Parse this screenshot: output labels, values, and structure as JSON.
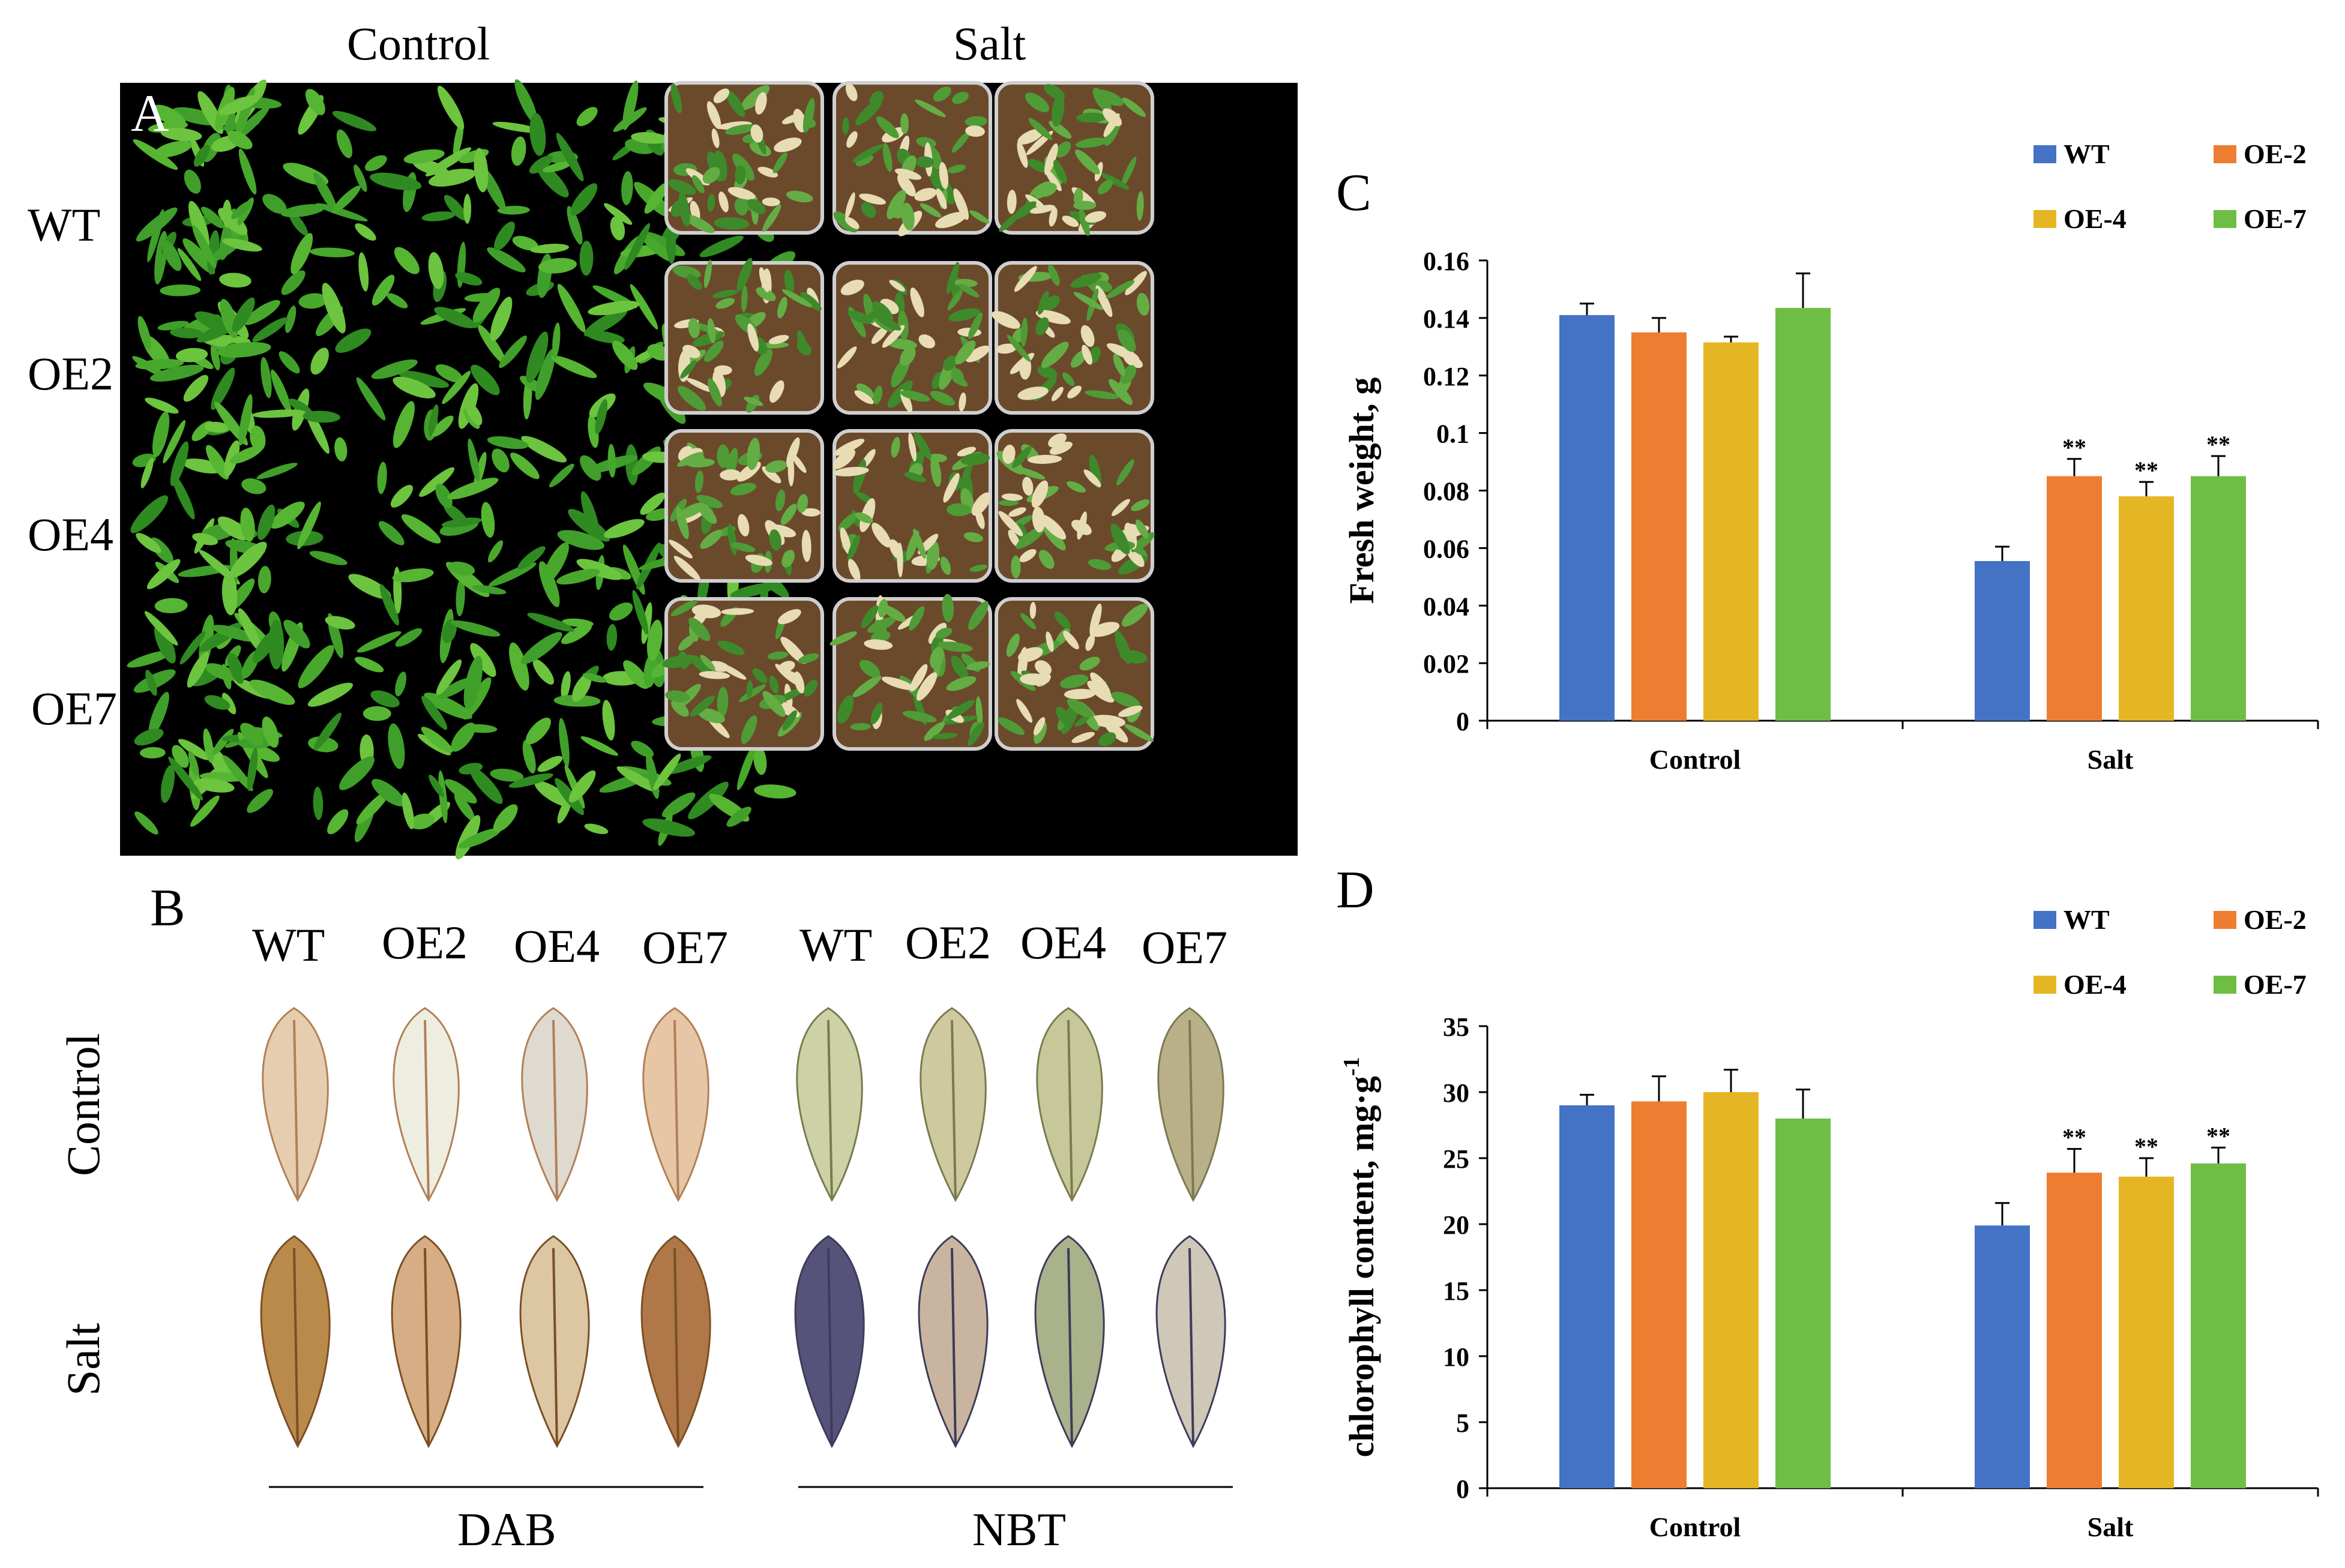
{
  "panel_a": {
    "letter": "A",
    "col_labels": [
      "Control",
      "Salt"
    ],
    "row_labels": [
      "WT",
      "OE2",
      "OE4",
      "OE7"
    ]
  },
  "panel_b": {
    "letter": "B",
    "col_labels": [
      "WT",
      "OE2",
      "OE4",
      "OE7",
      "WT",
      "OE2",
      "OE4",
      "OE7"
    ],
    "row_labels": [
      "Control",
      "Salt"
    ],
    "group_labels": [
      "DAB",
      "NBT"
    ]
  },
  "colors": {
    "WT": "#4472C4",
    "OE-2": "#ED7D31",
    "OE-4": "#E5B623",
    "OE-7": "#6EBE45",
    "photo_bg": "#000000",
    "leaf_green": "#3c9a2c"
  },
  "chart_data": [
    {
      "panel": "C",
      "type": "bar",
      "title": "",
      "xlabel": "",
      "ylabel": "Fresh weight, g",
      "ylim": [
        0,
        0.16
      ],
      "yticks": [
        0,
        0.02,
        0.04,
        0.06,
        0.08,
        0.1,
        0.12,
        0.14,
        0.16
      ],
      "ytick_labels": [
        "0",
        "0.02",
        "0.04",
        "0.06",
        "0.08",
        "0.1",
        "0.12",
        "0.14",
        "0.16"
      ],
      "categories": [
        "Control",
        "Salt"
      ],
      "series": [
        {
          "name": "WT",
          "values": [
            0.141,
            0.0555
          ],
          "errors": [
            0.004,
            0.005
          ],
          "sig": [
            "",
            ""
          ]
        },
        {
          "name": "OE-2",
          "values": [
            0.135,
            0.085
          ],
          "errors": [
            0.005,
            0.006
          ],
          "sig": [
            "",
            "**"
          ]
        },
        {
          "name": "OE-4",
          "values": [
            0.1315,
            0.078
          ],
          "errors": [
            0.002,
            0.005
          ],
          "sig": [
            "",
            "**"
          ]
        },
        {
          "name": "OE-7",
          "values": [
            0.1435,
            0.085
          ],
          "errors": [
            0.012,
            0.007
          ],
          "sig": [
            "",
            "**"
          ]
        }
      ]
    },
    {
      "panel": "D",
      "type": "bar",
      "title": "",
      "xlabel": "",
      "ylabel": "chlorophyll content, mg·g",
      "ylabel_sup": "-1",
      "ylim": [
        0,
        35
      ],
      "yticks": [
        0,
        5,
        10,
        15,
        20,
        25,
        30,
        35
      ],
      "ytick_labels": [
        "0",
        "5",
        "10",
        "15",
        "20",
        "25",
        "30",
        "35"
      ],
      "categories": [
        "Control",
        "Salt"
      ],
      "series": [
        {
          "name": "WT",
          "values": [
            29.0,
            19.9
          ],
          "errors": [
            0.8,
            1.7
          ],
          "sig": [
            "",
            ""
          ]
        },
        {
          "name": "OE-2",
          "values": [
            29.3,
            23.9
          ],
          "errors": [
            1.9,
            1.8
          ],
          "sig": [
            "",
            "**"
          ]
        },
        {
          "name": "OE-4",
          "values": [
            30.0,
            23.6
          ],
          "errors": [
            1.7,
            1.4
          ],
          "sig": [
            "",
            "**"
          ]
        },
        {
          "name": "OE-7",
          "values": [
            28.0,
            24.6
          ],
          "errors": [
            2.2,
            1.2
          ],
          "sig": [
            "",
            "**"
          ]
        }
      ]
    }
  ]
}
